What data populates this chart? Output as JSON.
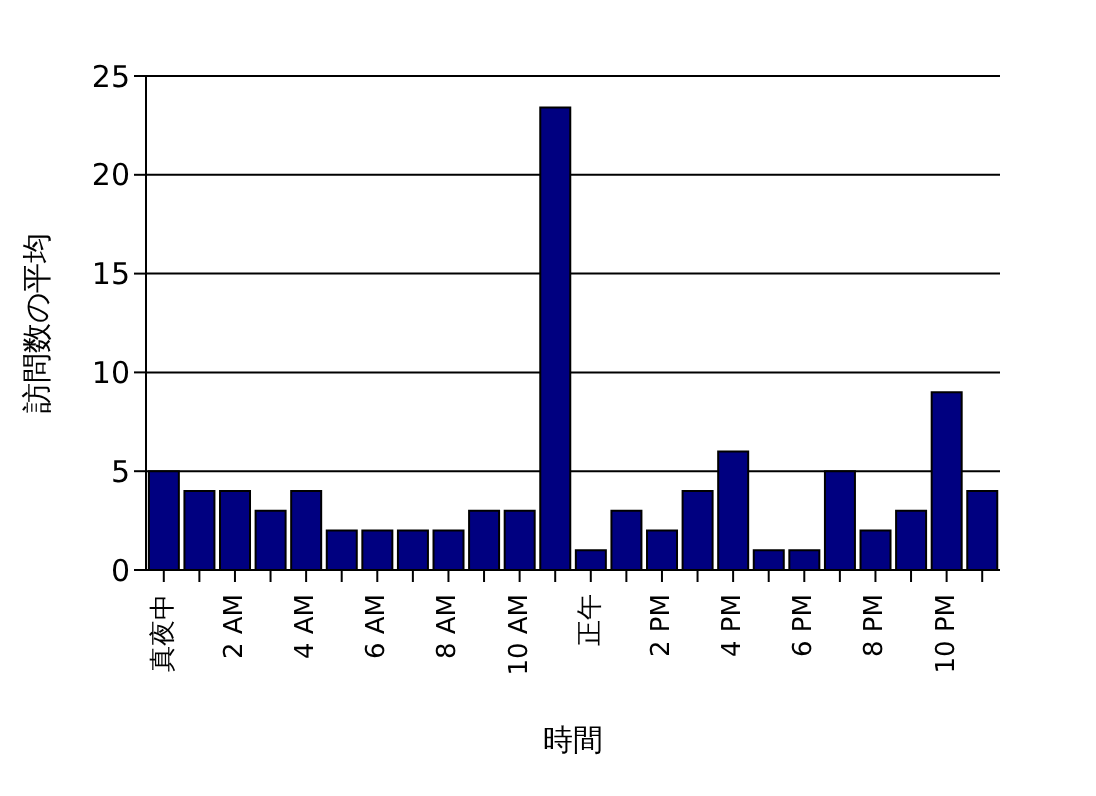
{
  "chart_data": {
    "type": "bar",
    "xlabel": "時間",
    "ylabel": "訪問数の平均",
    "categories": [
      "真夜中",
      null,
      "2 AM",
      null,
      "4 AM",
      null,
      "6 AM",
      null,
      "8 AM",
      null,
      "10 AM",
      null,
      "正午",
      null,
      "2 PM",
      null,
      "4 PM",
      null,
      "6 PM",
      null,
      "8 PM",
      null,
      "10 PM",
      null
    ],
    "values": [
      5,
      4,
      4,
      3,
      4,
      2,
      2,
      2,
      2,
      3,
      3,
      23.4,
      1,
      3,
      2,
      4,
      6,
      1,
      1,
      5,
      2,
      3,
      9,
      4
    ],
    "color": "#000080",
    "ylim": [
      0,
      25
    ],
    "yticks": [
      0,
      5,
      10,
      15,
      20,
      25
    ],
    "grid": "y"
  }
}
